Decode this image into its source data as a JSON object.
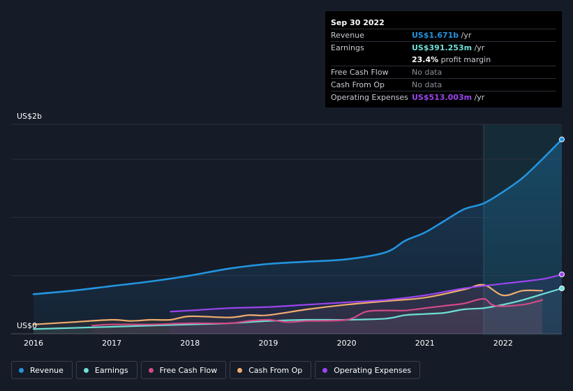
{
  "tooltip": {
    "date": "Sep 30 2022",
    "rows": [
      {
        "label": "Revenue",
        "value": "US$1.671b",
        "suffix": " /yr",
        "color": "#2394df"
      },
      {
        "label": "Earnings",
        "value": "US$391.253m",
        "suffix": " /yr",
        "color": "#6ee0d6"
      },
      {
        "label": "",
        "value": "23.4%",
        "suffix": " profit margin",
        "color": "#ffffff"
      },
      {
        "label": "Free Cash Flow",
        "value": "No data",
        "suffix": "",
        "color": "#8a8f98"
      },
      {
        "label": "Cash From Op",
        "value": "No data",
        "suffix": "",
        "color": "#8a8f98"
      },
      {
        "label": "Operating Expenses",
        "value": "US$513.003m",
        "suffix": " /yr",
        "color": "#9b45ef"
      }
    ]
  },
  "chart_data": {
    "type": "line",
    "ylabel_top": "US$2b",
    "ylabel_bottom": "US$0",
    "ylim": [
      0,
      1.8
    ],
    "xlim": [
      2016,
      2022.75
    ],
    "x_ticks": [
      "2016",
      "2017",
      "2018",
      "2019",
      "2020",
      "2021",
      "2022"
    ],
    "grid": true,
    "series": [
      {
        "name": "Revenue",
        "color": "#2394df",
        "x": [
          2016,
          2016.5,
          2017,
          2017.5,
          2018,
          2018.5,
          2019,
          2019.5,
          2020,
          2020.5,
          2020.75,
          2021,
          2021.25,
          2021.5,
          2021.75,
          2022,
          2022.25,
          2022.5,
          2022.75
        ],
        "values": [
          0.34,
          0.37,
          0.41,
          0.45,
          0.5,
          0.56,
          0.6,
          0.62,
          0.64,
          0.7,
          0.8,
          0.87,
          0.97,
          1.07,
          1.12,
          1.22,
          1.34,
          1.5,
          1.67
        ]
      },
      {
        "name": "Earnings",
        "color": "#6ee0d6",
        "x": [
          2016,
          2016.5,
          2017,
          2017.5,
          2018,
          2018.5,
          2019,
          2019.5,
          2020,
          2020.5,
          2020.75,
          2021,
          2021.25,
          2021.5,
          2021.75,
          2022,
          2022.25,
          2022.5,
          2022.75
        ],
        "values": [
          0.04,
          0.05,
          0.06,
          0.07,
          0.08,
          0.09,
          0.11,
          0.12,
          0.12,
          0.13,
          0.16,
          0.17,
          0.18,
          0.21,
          0.22,
          0.25,
          0.29,
          0.34,
          0.39
        ]
      },
      {
        "name": "Free Cash Flow",
        "color": "#d14b86",
        "x": [
          2016.75,
          2017,
          2017.5,
          2018,
          2018.5,
          2018.75,
          2019,
          2019.25,
          2019.5,
          2020,
          2020.25,
          2020.5,
          2020.75,
          2021,
          2021.25,
          2021.5,
          2021.75,
          2021.9,
          2022.25,
          2022.5
        ],
        "values": [
          0.07,
          0.08,
          0.08,
          0.09,
          0.09,
          0.11,
          0.12,
          0.1,
          0.11,
          0.12,
          0.19,
          0.2,
          0.2,
          0.22,
          0.24,
          0.26,
          0.3,
          0.24,
          0.25,
          0.29
        ]
      },
      {
        "name": "Cash From Op",
        "color": "#f0ad6d",
        "x": [
          2016,
          2016.5,
          2017,
          2017.25,
          2017.5,
          2017.75,
          2018,
          2018.5,
          2018.75,
          2019,
          2019.5,
          2020,
          2020.5,
          2021,
          2021.5,
          2021.75,
          2022,
          2022.25,
          2022.5
        ],
        "values": [
          0.08,
          0.1,
          0.12,
          0.11,
          0.12,
          0.12,
          0.15,
          0.14,
          0.16,
          0.16,
          0.21,
          0.25,
          0.28,
          0.31,
          0.38,
          0.42,
          0.33,
          0.37,
          0.37
        ]
      },
      {
        "name": "Operating Expenses",
        "color": "#9b45ef",
        "x": [
          2017.75,
          2018,
          2018.5,
          2019,
          2019.5,
          2020,
          2020.5,
          2021,
          2021.5,
          2022,
          2022.5,
          2022.75
        ],
        "values": [
          0.19,
          0.2,
          0.22,
          0.23,
          0.25,
          0.27,
          0.29,
          0.33,
          0.39,
          0.43,
          0.47,
          0.51
        ]
      }
    ]
  },
  "legend": [
    {
      "label": "Revenue",
      "color": "#2394df"
    },
    {
      "label": "Earnings",
      "color": "#6ee0d6"
    },
    {
      "label": "Free Cash Flow",
      "color": "#d14b86"
    },
    {
      "label": "Cash From Op",
      "color": "#f0ad6d"
    },
    {
      "label": "Operating Expenses",
      "color": "#9b45ef"
    }
  ]
}
